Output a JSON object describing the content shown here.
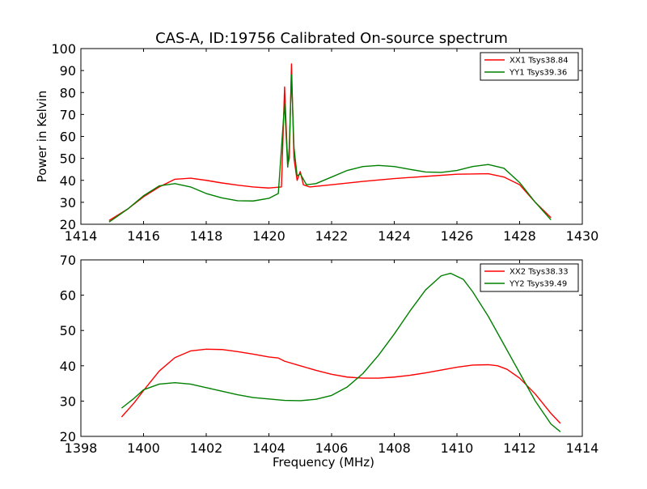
{
  "figure_title": "CAS-A, ID:19756 Calibrated On-source spectrum",
  "chart_data": [
    {
      "type": "line",
      "xlabel": "",
      "ylabel": "Power in Kelvin",
      "xlim": [
        1414,
        1430
      ],
      "ylim": [
        20,
        100
      ],
      "xticks": [
        1414,
        1416,
        1418,
        1420,
        1422,
        1424,
        1426,
        1428,
        1430
      ],
      "yticks": [
        20,
        30,
        40,
        50,
        60,
        70,
        80,
        90,
        100
      ],
      "legend_position": "top-right",
      "series": [
        {
          "name": "XX1 Tsys38.84",
          "color": "#ff0000",
          "points": [
            [
              1414.9,
              21.7
            ],
            [
              1415.5,
              27.0
            ],
            [
              1416.0,
              32.5
            ],
            [
              1416.5,
              37.0
            ],
            [
              1417.0,
              40.5
            ],
            [
              1417.5,
              41.0
            ],
            [
              1418.0,
              40.0
            ],
            [
              1418.5,
              38.8
            ],
            [
              1419.0,
              37.8
            ],
            [
              1419.5,
              37.0
            ],
            [
              1420.0,
              36.5
            ],
            [
              1420.4,
              37.0
            ],
            [
              1420.5,
              82.5
            ],
            [
              1420.6,
              47.0
            ],
            [
              1420.65,
              50.0
            ],
            [
              1420.72,
              93.0
            ],
            [
              1420.8,
              50.0
            ],
            [
              1420.9,
              40.0
            ],
            [
              1421.0,
              44.0
            ],
            [
              1421.1,
              38.0
            ],
            [
              1421.3,
              37.0
            ],
            [
              1422.0,
              38.0
            ],
            [
              1423.0,
              39.5
            ],
            [
              1424.0,
              40.8
            ],
            [
              1425.0,
              41.8
            ],
            [
              1426.0,
              42.8
            ],
            [
              1427.0,
              43.0
            ],
            [
              1427.5,
              41.5
            ],
            [
              1428.0,
              38.0
            ],
            [
              1428.5,
              30.0
            ],
            [
              1429.0,
              23.0
            ]
          ]
        },
        {
          "name": "YY1 Tsys39.36",
          "color": "#008000",
          "points": [
            [
              1414.9,
              21.0
            ],
            [
              1415.5,
              27.0
            ],
            [
              1416.0,
              33.0
            ],
            [
              1416.5,
              37.5
            ],
            [
              1417.0,
              38.5
            ],
            [
              1417.5,
              37.0
            ],
            [
              1418.0,
              34.0
            ],
            [
              1418.5,
              32.0
            ],
            [
              1419.0,
              30.7
            ],
            [
              1419.5,
              30.6
            ],
            [
              1420.0,
              31.8
            ],
            [
              1420.3,
              34.0
            ],
            [
              1420.5,
              75.0
            ],
            [
              1420.6,
              46.0
            ],
            [
              1420.65,
              55.0
            ],
            [
              1420.72,
              88.0
            ],
            [
              1420.8,
              55.0
            ],
            [
              1420.9,
              42.0
            ],
            [
              1421.0,
              43.0
            ],
            [
              1421.2,
              38.0
            ],
            [
              1421.5,
              38.5
            ],
            [
              1422.0,
              41.5
            ],
            [
              1422.5,
              44.5
            ],
            [
              1423.0,
              46.3
            ],
            [
              1423.5,
              46.8
            ],
            [
              1424.0,
              46.3
            ],
            [
              1424.5,
              45.0
            ],
            [
              1425.0,
              43.8
            ],
            [
              1425.5,
              43.6
            ],
            [
              1426.0,
              44.5
            ],
            [
              1426.5,
              46.3
            ],
            [
              1427.0,
              47.2
            ],
            [
              1427.5,
              45.5
            ],
            [
              1428.0,
              39.0
            ],
            [
              1428.5,
              30.0
            ],
            [
              1429.0,
              22.0
            ]
          ]
        }
      ]
    },
    {
      "type": "line",
      "xlabel": "Frequency (MHz)",
      "ylabel": "",
      "xlim": [
        1398,
        1414
      ],
      "ylim": [
        20,
        70
      ],
      "xticks": [
        1398,
        1400,
        1402,
        1404,
        1406,
        1408,
        1410,
        1412,
        1414
      ],
      "yticks": [
        20,
        30,
        40,
        50,
        60,
        70
      ],
      "legend_position": "top-right",
      "series": [
        {
          "name": "XX2 Tsys38.33",
          "color": "#ff0000",
          "points": [
            [
              1399.3,
              25.5
            ],
            [
              1399.7,
              29.5
            ],
            [
              1400.0,
              33.0
            ],
            [
              1400.5,
              38.5
            ],
            [
              1401.0,
              42.3
            ],
            [
              1401.5,
              44.2
            ],
            [
              1402.0,
              44.7
            ],
            [
              1402.5,
              44.6
            ],
            [
              1403.0,
              44.0
            ],
            [
              1403.5,
              43.3
            ],
            [
              1404.0,
              42.5
            ],
            [
              1404.3,
              42.2
            ],
            [
              1404.5,
              41.3
            ],
            [
              1405.0,
              40.0
            ],
            [
              1405.5,
              38.7
            ],
            [
              1406.0,
              37.6
            ],
            [
              1406.5,
              36.8
            ],
            [
              1407.0,
              36.5
            ],
            [
              1407.5,
              36.5
            ],
            [
              1408.0,
              36.8
            ],
            [
              1408.5,
              37.3
            ],
            [
              1409.0,
              38.0
            ],
            [
              1409.5,
              38.8
            ],
            [
              1410.0,
              39.6
            ],
            [
              1410.5,
              40.2
            ],
            [
              1411.0,
              40.3
            ],
            [
              1411.3,
              40.0
            ],
            [
              1411.6,
              39.0
            ],
            [
              1412.0,
              36.5
            ],
            [
              1412.5,
              32.0
            ],
            [
              1413.0,
              26.5
            ],
            [
              1413.3,
              23.7
            ]
          ]
        },
        {
          "name": "YY2 Tsys39.49",
          "color": "#008000",
          "points": [
            [
              1399.3,
              28.0
            ],
            [
              1399.7,
              30.8
            ],
            [
              1400.0,
              33.2
            ],
            [
              1400.5,
              34.8
            ],
            [
              1401.0,
              35.2
            ],
            [
              1401.5,
              34.8
            ],
            [
              1402.0,
              33.8
            ],
            [
              1402.5,
              32.8
            ],
            [
              1403.0,
              31.8
            ],
            [
              1403.5,
              31.0
            ],
            [
              1404.0,
              30.6
            ],
            [
              1404.5,
              30.2
            ],
            [
              1405.0,
              30.1
            ],
            [
              1405.5,
              30.5
            ],
            [
              1406.0,
              31.6
            ],
            [
              1406.5,
              34.0
            ],
            [
              1407.0,
              37.8
            ],
            [
              1407.5,
              43.0
            ],
            [
              1408.0,
              49.0
            ],
            [
              1408.5,
              55.5
            ],
            [
              1409.0,
              61.5
            ],
            [
              1409.5,
              65.5
            ],
            [
              1409.8,
              66.2
            ],
            [
              1410.2,
              64.5
            ],
            [
              1410.5,
              61.0
            ],
            [
              1411.0,
              54.0
            ],
            [
              1411.5,
              46.0
            ],
            [
              1412.0,
              38.0
            ],
            [
              1412.5,
              30.0
            ],
            [
              1413.0,
              23.5
            ],
            [
              1413.3,
              21.3
            ]
          ]
        }
      ]
    }
  ]
}
